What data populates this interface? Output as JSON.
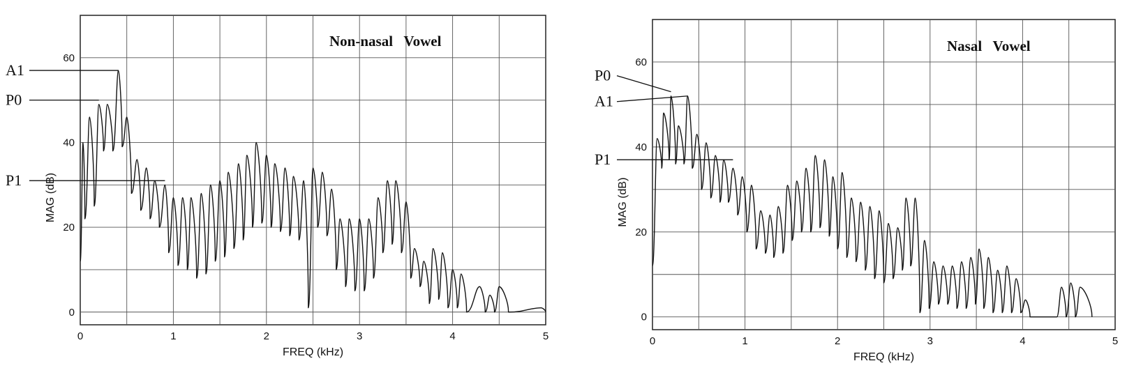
{
  "chart_data": [
    {
      "type": "line",
      "title": "Non-nasal   Vowel",
      "xlabel": "FREQ (kHz)",
      "ylabel": "MAG (dB)",
      "xlim": [
        0,
        5
      ],
      "ylim": [
        -3,
        70
      ],
      "xticks": [
        "0",
        "1",
        "2",
        "3",
        "4",
        "5"
      ],
      "yticks": [
        "0",
        "20",
        "40",
        "60"
      ],
      "grid": true,
      "peaks": [
        [
          0.03,
          40
        ],
        [
          0.1,
          46
        ],
        [
          0.2,
          49
        ],
        [
          0.29,
          49
        ],
        [
          0.41,
          57
        ],
        [
          0.5,
          46
        ],
        [
          0.61,
          36
        ],
        [
          0.71,
          34
        ],
        [
          0.8,
          31
        ],
        [
          0.91,
          30
        ],
        [
          1.0,
          27
        ],
        [
          1.1,
          27
        ],
        [
          1.19,
          27
        ],
        [
          1.3,
          28
        ],
        [
          1.4,
          30
        ],
        [
          1.5,
          31
        ],
        [
          1.59,
          33
        ],
        [
          1.7,
          35
        ],
        [
          1.79,
          37
        ],
        [
          1.89,
          40
        ],
        [
          2.0,
          37
        ],
        [
          2.09,
          35
        ],
        [
          2.2,
          34
        ],
        [
          2.29,
          32
        ],
        [
          2.4,
          31
        ],
        [
          2.5,
          34
        ],
        [
          2.6,
          33
        ],
        [
          2.7,
          29
        ],
        [
          2.79,
          22
        ],
        [
          2.89,
          22
        ],
        [
          3.0,
          22
        ],
        [
          3.1,
          22
        ],
        [
          3.2,
          27
        ],
        [
          3.3,
          31
        ],
        [
          3.39,
          31
        ],
        [
          3.5,
          26
        ],
        [
          3.59,
          15
        ],
        [
          3.69,
          12
        ],
        [
          3.79,
          15
        ],
        [
          3.89,
          14
        ],
        [
          4.0,
          10
        ],
        [
          4.09,
          9
        ],
        [
          4.29,
          6
        ],
        [
          4.4,
          4
        ],
        [
          4.5,
          6
        ],
        [
          4.95,
          1
        ]
      ],
      "valleys": [
        [
          0.05,
          22
        ],
        [
          0.15,
          25
        ],
        [
          0.25,
          38
        ],
        [
          0.35,
          38
        ],
        [
          0.45,
          39
        ],
        [
          0.55,
          28
        ],
        [
          0.65,
          24
        ],
        [
          0.75,
          22
        ],
        [
          0.85,
          20
        ],
        [
          0.95,
          14
        ],
        [
          1.05,
          11
        ],
        [
          1.15,
          10
        ],
        [
          1.25,
          8
        ],
        [
          1.35,
          9
        ],
        [
          1.45,
          12
        ],
        [
          1.55,
          13
        ],
        [
          1.65,
          15
        ],
        [
          1.75,
          17
        ],
        [
          1.85,
          20
        ],
        [
          1.95,
          21
        ],
        [
          2.05,
          20
        ],
        [
          2.15,
          19
        ],
        [
          2.25,
          18
        ],
        [
          2.35,
          17
        ],
        [
          2.45,
          1
        ],
        [
          2.55,
          20
        ],
        [
          2.65,
          18
        ],
        [
          2.75,
          10
        ],
        [
          2.85,
          6
        ],
        [
          2.95,
          5
        ],
        [
          3.05,
          5
        ],
        [
          3.15,
          8
        ],
        [
          3.25,
          14
        ],
        [
          3.35,
          16
        ],
        [
          3.45,
          14
        ],
        [
          3.55,
          8
        ],
        [
          3.65,
          6
        ],
        [
          3.75,
          2
        ],
        [
          3.85,
          3
        ],
        [
          3.95,
          1
        ],
        [
          4.05,
          1
        ],
        [
          4.15,
          0
        ],
        [
          4.35,
          0
        ],
        [
          4.45,
          0
        ],
        [
          4.6,
          0
        ],
        [
          5.0,
          0
        ]
      ],
      "markers": [
        {
          "label": "A1",
          "y": 57,
          "to_x": 0.41
        },
        {
          "label": "P0",
          "y": 50,
          "to_x": 0.2
        },
        {
          "label": "P1",
          "y": 31,
          "to_x": 0.91
        }
      ]
    },
    {
      "type": "line",
      "title": "Nasal   Vowel",
      "xlabel": "FREQ (kHz)",
      "ylabel": "MAG (dB)",
      "xlim": [
        0,
        5
      ],
      "ylim": [
        -3,
        70
      ],
      "xticks": [
        "0",
        "1",
        "2",
        "3",
        "4",
        "5"
      ],
      "yticks": [
        "0",
        "20",
        "40",
        "60"
      ],
      "grid": true,
      "peaks": [
        [
          0.05,
          42
        ],
        [
          0.12,
          48
        ],
        [
          0.2,
          52
        ],
        [
          0.28,
          45
        ],
        [
          0.38,
          52
        ],
        [
          0.48,
          43
        ],
        [
          0.58,
          41
        ],
        [
          0.68,
          38
        ],
        [
          0.77,
          37
        ],
        [
          0.87,
          35
        ],
        [
          0.97,
          33
        ],
        [
          1.07,
          31
        ],
        [
          1.17,
          25
        ],
        [
          1.27,
          24
        ],
        [
          1.36,
          26
        ],
        [
          1.46,
          31
        ],
        [
          1.56,
          32
        ],
        [
          1.66,
          35
        ],
        [
          1.76,
          38
        ],
        [
          1.86,
          37
        ],
        [
          1.95,
          33
        ],
        [
          2.05,
          34
        ],
        [
          2.15,
          28
        ],
        [
          2.25,
          27
        ],
        [
          2.35,
          26
        ],
        [
          2.45,
          25
        ],
        [
          2.55,
          22
        ],
        [
          2.65,
          21
        ],
        [
          2.74,
          28
        ],
        [
          2.84,
          28
        ],
        [
          2.94,
          18
        ],
        [
          3.04,
          13
        ],
        [
          3.14,
          12
        ],
        [
          3.24,
          12
        ],
        [
          3.34,
          13
        ],
        [
          3.44,
          14
        ],
        [
          3.53,
          16
        ],
        [
          3.63,
          14
        ],
        [
          3.73,
          11
        ],
        [
          3.83,
          12
        ],
        [
          3.93,
          9
        ],
        [
          4.03,
          4
        ],
        [
          4.42,
          7
        ],
        [
          4.52,
          8
        ],
        [
          4.62,
          7
        ]
      ],
      "valleys": [
        [
          0.1,
          35
        ],
        [
          0.18,
          37
        ],
        [
          0.25,
          36
        ],
        [
          0.34,
          36
        ],
        [
          0.43,
          35
        ],
        [
          0.53,
          30
        ],
        [
          0.63,
          28
        ],
        [
          0.73,
          27
        ],
        [
          0.82,
          27
        ],
        [
          0.92,
          24
        ],
        [
          1.02,
          20
        ],
        [
          1.12,
          16
        ],
        [
          1.22,
          15
        ],
        [
          1.31,
          14
        ],
        [
          1.41,
          15
        ],
        [
          1.51,
          18
        ],
        [
          1.61,
          20
        ],
        [
          1.71,
          20
        ],
        [
          1.81,
          21
        ],
        [
          1.91,
          19
        ],
        [
          2.0,
          16
        ],
        [
          2.1,
          14
        ],
        [
          2.2,
          13
        ],
        [
          2.3,
          11
        ],
        [
          2.4,
          9
        ],
        [
          2.5,
          8
        ],
        [
          2.6,
          9
        ],
        [
          2.7,
          11
        ],
        [
          2.79,
          12
        ],
        [
          2.89,
          1
        ],
        [
          2.99,
          2
        ],
        [
          3.09,
          3
        ],
        [
          3.19,
          3
        ],
        [
          3.29,
          2
        ],
        [
          3.39,
          2
        ],
        [
          3.49,
          3
        ],
        [
          3.58,
          2
        ],
        [
          3.68,
          1
        ],
        [
          3.78,
          1
        ],
        [
          3.88,
          1
        ],
        [
          3.98,
          1
        ],
        [
          4.08,
          0
        ],
        [
          4.37,
          0
        ],
        [
          4.47,
          0
        ],
        [
          4.57,
          0
        ],
        [
          4.75,
          0
        ]
      ],
      "markers": [
        {
          "label": "P0",
          "y": 53,
          "to_x": 0.2
        },
        {
          "label": "A1",
          "y": 52,
          "to_x": 0.38
        },
        {
          "label": "P1",
          "y": 37,
          "to_x": 0.87
        }
      ]
    }
  ]
}
